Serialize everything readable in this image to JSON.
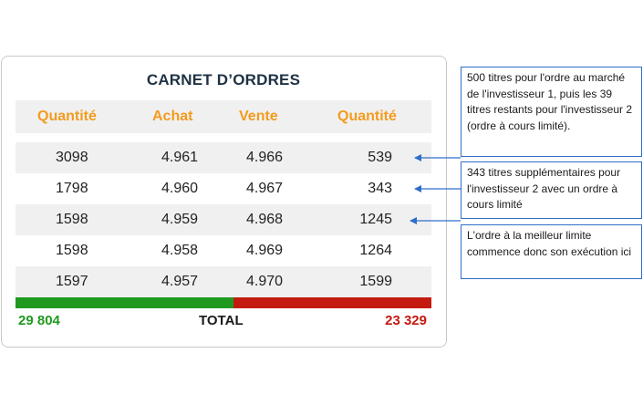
{
  "title": "CARNET D’ORDRES",
  "headers": [
    "Quantité",
    "Achat",
    "Vente",
    "Quantité"
  ],
  "rows": [
    [
      "3098",
      "4.961",
      "4.966",
      "539"
    ],
    [
      "1798",
      "4.960",
      "4.967",
      "343"
    ],
    [
      "1598",
      "4.959",
      "4.968",
      "1245"
    ],
    [
      "1598",
      "4.958",
      "4.969",
      "1264"
    ],
    [
      "1597",
      "4.957",
      "4.970",
      "1599"
    ]
  ],
  "totals": {
    "buy": "29 804",
    "label": "TOTAL",
    "sell": "23 329"
  },
  "notes": [
    "500 titres pour l'ordre au marché de l'investisseur 1, puis les 39 titres restants pour l'investisseur 2 (ordre à cours limité).",
    "343 titres supplémentaires pour l'investisseur 2 avec un ordre à cours limité",
    "L'ordre à la meilleur limite commence donc son exécution ici"
  ],
  "colors": {
    "header_text": "#f39b1d",
    "title_text": "#1e3144",
    "buy_green": "#1f9a1f",
    "sell_red": "#c41a10",
    "note_border": "#2f6fc9"
  }
}
